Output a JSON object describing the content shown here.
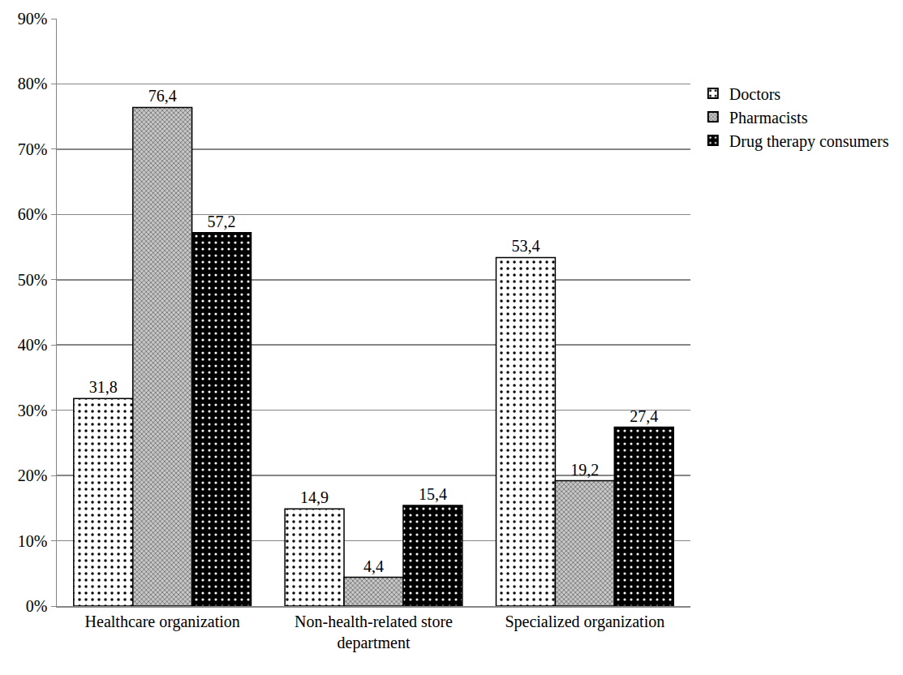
{
  "chart_data": {
    "type": "bar",
    "categories": [
      "Healthcare organization",
      "Non-health-related store department",
      "Specialized organization"
    ],
    "series": [
      {
        "name": "Doctors",
        "color": "#ffffff",
        "values": [
          31.8,
          14.9,
          53.4
        ],
        "value_labels": [
          "31,8",
          "14,9",
          "53,4"
        ]
      },
      {
        "name": "Pharmacists",
        "color": "#a6a6a6",
        "values": [
          76.4,
          4.4,
          19.2
        ],
        "value_labels": [
          "76,4",
          "4,4",
          "19,2"
        ]
      },
      {
        "name": "Drug therapy consumers",
        "color": "#000000",
        "values": [
          57.2,
          15.4,
          27.4
        ],
        "value_labels": [
          "57,2",
          "15,4",
          "27,4"
        ]
      }
    ],
    "ylim": [
      0,
      90
    ],
    "yticks": [
      {
        "value": 0,
        "label": "0%"
      },
      {
        "value": 10,
        "label": "10%"
      },
      {
        "value": 20,
        "label": "20%"
      },
      {
        "value": 30,
        "label": "30%"
      },
      {
        "value": 40,
        "label": "40%"
      },
      {
        "value": 50,
        "label": "50%"
      },
      {
        "value": 60,
        "label": "60%"
      },
      {
        "value": 70,
        "label": "70%"
      },
      {
        "value": 80,
        "label": "80%"
      },
      {
        "value": 90,
        "label": "90%"
      }
    ],
    "grid": true,
    "legend": "right",
    "data_labels": true
  }
}
